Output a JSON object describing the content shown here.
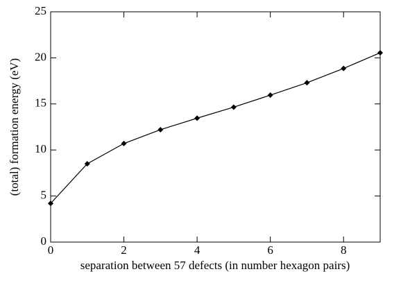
{
  "chart_data": {
    "type": "line",
    "x_label": "separation between 57 defects (in number hexagon pairs)",
    "y_label": "(total) formation energy (eV)",
    "x": [
      0,
      1,
      2,
      3,
      4,
      5,
      6,
      7,
      8,
      9
    ],
    "series": [
      {
        "color": "#000000",
        "values": [
          4.2,
          8.5,
          10.7,
          12.2,
          13.45,
          14.65,
          15.95,
          17.3,
          18.85,
          20.55
        ]
      }
    ],
    "xlim": [
      0,
      9
    ],
    "xticks": [
      0,
      2,
      4,
      6,
      8
    ],
    "ylim": [
      0,
      25
    ],
    "yticks": [
      0,
      5,
      10,
      15,
      20,
      25
    ],
    "grid": false
  }
}
